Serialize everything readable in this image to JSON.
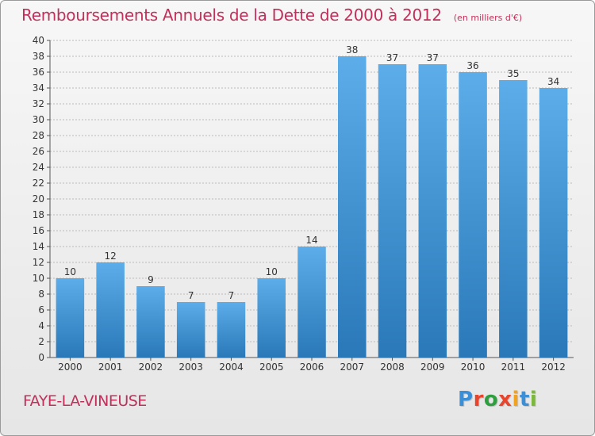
{
  "title": "Remboursements Annuels de la Dette de 2000 à 2012",
  "unit": "(en milliers d'€)",
  "commune": "FAYE-LA-VINEUSE",
  "logo": {
    "letters": [
      "P",
      "r",
      "o",
      "x",
      "i",
      "t",
      "i"
    ],
    "colors": [
      "#3a8fd6",
      "#e8452c",
      "#2e9e3e",
      "#e8452c",
      "#f2a21e",
      "#3a8fd6",
      "#7ab83a"
    ]
  },
  "colors": {
    "bar_light": "#5aaae8",
    "bar_dark": "#2a78b8",
    "title": "#c0305a",
    "grid": "#bbbbbb"
  },
  "chart_data": {
    "type": "bar",
    "title": "Remboursements Annuels de la Dette de 2000 à 2012",
    "xlabel": "",
    "ylabel": "",
    "categories": [
      "2000",
      "2001",
      "2002",
      "2003",
      "2004",
      "2005",
      "2006",
      "2007",
      "2008",
      "2009",
      "2010",
      "2011",
      "2012"
    ],
    "values": [
      10,
      12,
      9,
      7,
      7,
      10,
      14,
      38,
      37,
      37,
      36,
      35,
      34
    ],
    "ylim": [
      0,
      40
    ],
    "yticks": [
      0,
      2,
      4,
      6,
      8,
      10,
      12,
      14,
      16,
      18,
      20,
      22,
      24,
      26,
      28,
      30,
      32,
      34,
      36,
      38,
      40
    ],
    "grid": true,
    "data_labels": true
  }
}
